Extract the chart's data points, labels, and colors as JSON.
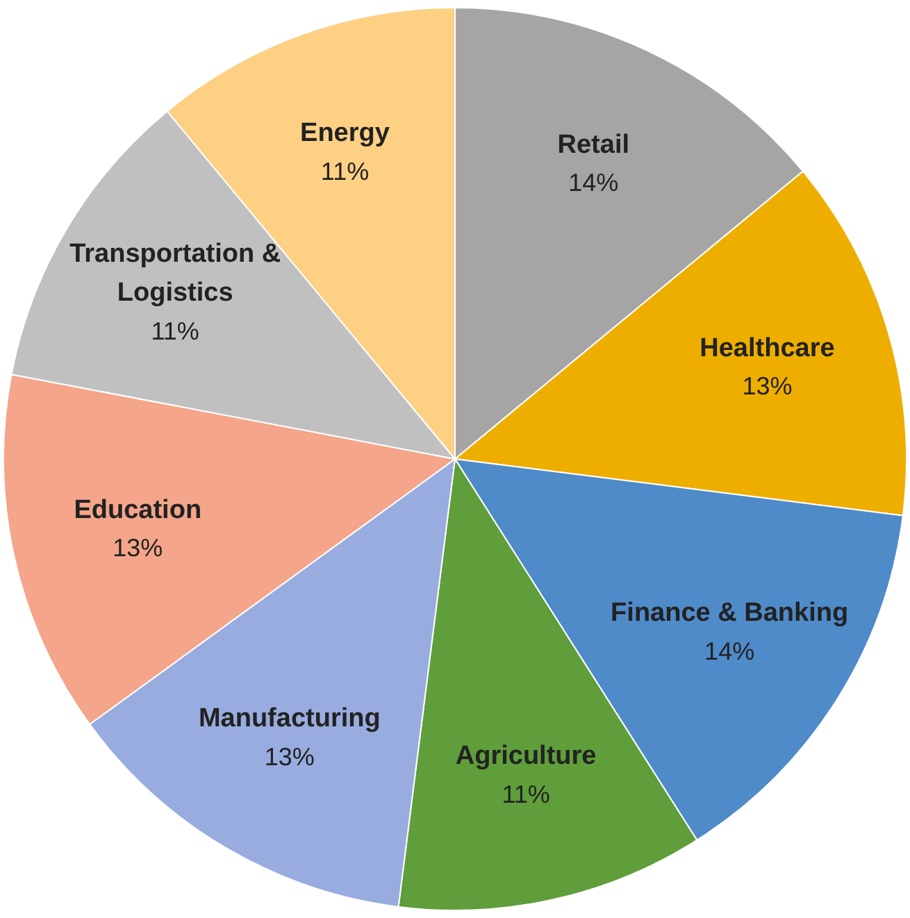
{
  "chart_data": {
    "type": "pie",
    "categories": [
      "Retail",
      "Healthcare",
      "Finance & Banking",
      "Agriculture",
      "Manufacturing",
      "Education",
      "Transportation & Logistics",
      "Energy"
    ],
    "values": [
      14,
      13,
      14,
      11,
      13,
      13,
      11,
      11
    ],
    "colors": [
      "#a5a5a5",
      "#eeae00",
      "#4f8ac9",
      "#5f9e3a",
      "#98acdf",
      "#f4a58a",
      "#c0c0c0",
      "#fdd083"
    ],
    "value_labels": [
      "14%",
      "13%",
      "14%",
      "11%",
      "13%",
      "13%",
      "11%",
      "11%"
    ]
  }
}
